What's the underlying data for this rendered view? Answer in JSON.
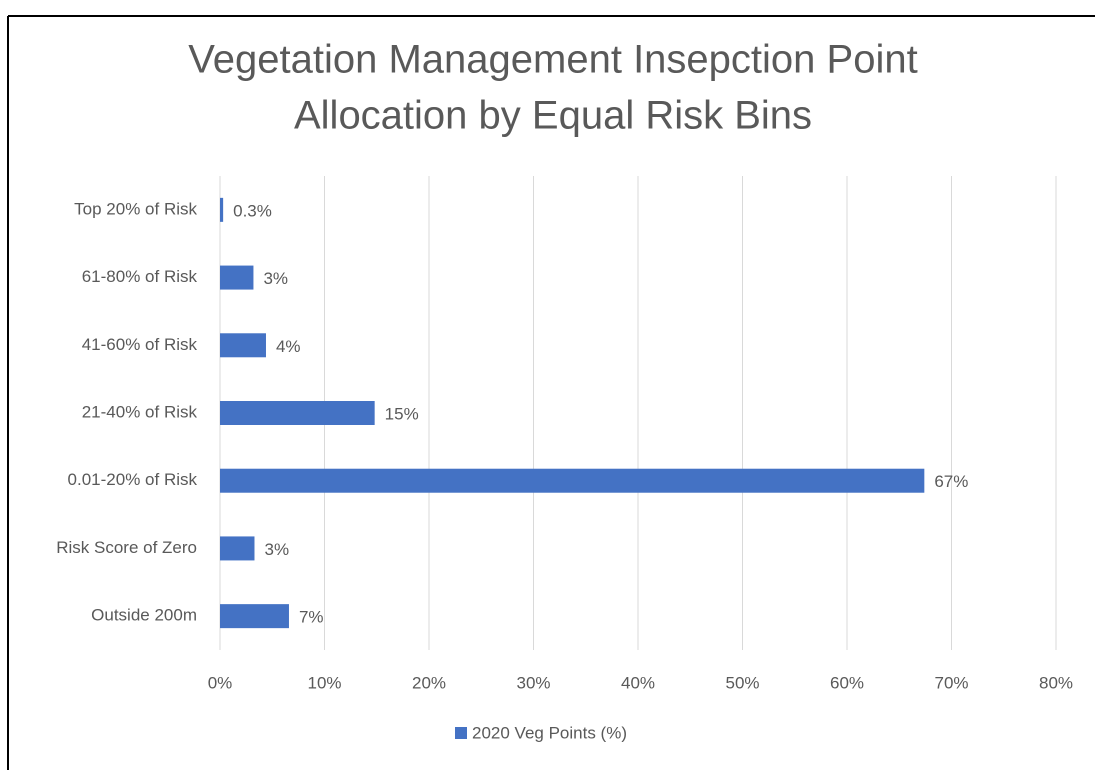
{
  "chart_data": {
    "type": "barh",
    "title": [
      "Vegetation Management Insepction Point",
      "Allocation by Equal Risk Bins"
    ],
    "categories": [
      "Top 20% of Risk",
      "61-80% of Risk",
      "41-60% of Risk",
      "21-40% of Risk",
      "0.01-20% of Risk",
      "Risk Score of Zero",
      "Outside 200m"
    ],
    "series": [
      {
        "name": "2020 Veg Points (%)",
        "color": "#4472c4",
        "values": [
          0.3,
          3.2,
          4.4,
          14.8,
          67.4,
          3.3,
          6.6
        ],
        "value_labels": [
          "0.3%",
          "3%",
          "4%",
          "15%",
          "67%",
          "3%",
          "7%"
        ]
      }
    ],
    "xlim": [
      0,
      80
    ],
    "xticks": [
      {
        "value": 0,
        "label": "0%"
      },
      {
        "value": 10,
        "label": "10%"
      },
      {
        "value": 20,
        "label": "20%"
      },
      {
        "value": 30,
        "label": "30%"
      },
      {
        "value": 40,
        "label": "40%"
      },
      {
        "value": 50,
        "label": "50%"
      },
      {
        "value": 60,
        "label": "60%"
      },
      {
        "value": 70,
        "label": "70%"
      },
      {
        "value": 80,
        "label": "80%"
      }
    ],
    "grid": true,
    "legend": "bottom"
  }
}
